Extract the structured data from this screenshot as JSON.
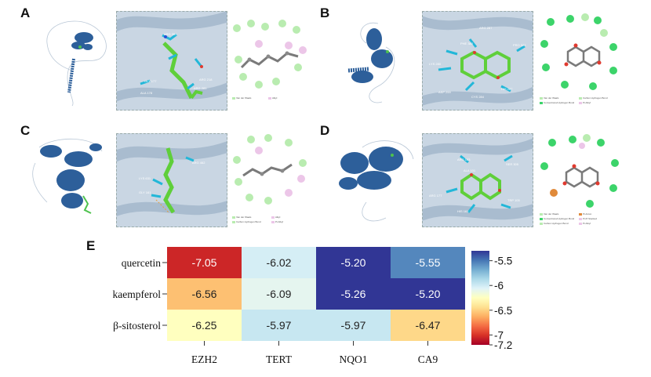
{
  "panels": [
    {
      "label": "A",
      "residues": [
        "ARG 350",
        "GLY 177",
        "ALA 178",
        "ARG 218",
        "ARG 281"
      ],
      "legend": [
        "Van der Waals",
        "Alkyl"
      ]
    },
    {
      "label": "B",
      "residues": [
        "ARG 287",
        "PHE 380",
        "LYS 280",
        "PRO 322",
        "ASP 259",
        "HIS 287",
        "CYS 284"
      ],
      "legend": [
        "Van der Waals",
        "Conventional Hydrogen Bond",
        "Carbon Hydrogen Bond",
        "Pi-Alkyl"
      ]
    },
    {
      "label": "C",
      "residues": [
        "LYS 631",
        "GLY 161",
        "ARG 462"
      ],
      "legend": [
        "Van der Waals",
        "Carbon Hydrogen Bond",
        "Alkyl",
        "Pi-Alkyl"
      ]
    },
    {
      "label": "D",
      "residues": [
        "ARG 103",
        "SER 305",
        "ALA 101",
        "ARG 177",
        "TRP 105",
        "HIS 161"
      ],
      "legend": [
        "Van der Waals",
        "Conventional Hydrogen Bond",
        "Carbon Hydrogen Bond",
        "Pi-Anion",
        "Pi-Pi Stacked",
        "Pi-Alkyl"
      ]
    }
  ],
  "panel_e_label": "E",
  "chart_data": {
    "type": "heatmap",
    "title": "",
    "rows": [
      "quercetin",
      "kaempferol",
      "β-sitosterol"
    ],
    "columns": [
      "EZH2",
      "TERT",
      "NQO1",
      "CA9"
    ],
    "values": [
      [
        -7.05,
        -6.02,
        -5.2,
        -5.55
      ],
      [
        -6.56,
        -6.09,
        -5.26,
        -5.2
      ],
      [
        -6.25,
        -5.97,
        -5.97,
        -6.47
      ]
    ],
    "labels": [
      [
        "-7.05",
        "-6.02",
        "-5.20",
        "-5.55"
      ],
      [
        "-6.56",
        "-6.09",
        "-5.26",
        "-5.20"
      ],
      [
        "-6.25",
        "-5.97",
        "-5.97",
        "-6.47"
      ]
    ],
    "colorbar": {
      "min": -7.2,
      "max": -5.3,
      "ticks": [
        -5.5,
        -6,
        -6.5,
        -7,
        -7.2
      ],
      "tick_labels": [
        "-5.5",
        "-6",
        "-6.5",
        "-7",
        "-7.2"
      ],
      "colormap": "RdYlBu"
    }
  }
}
